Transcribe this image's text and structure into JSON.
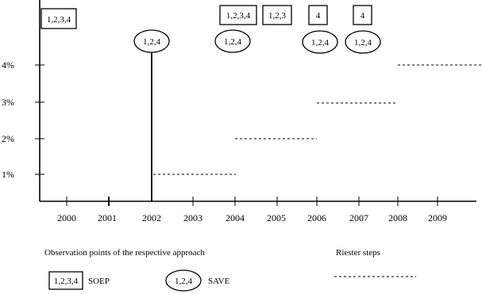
{
  "y_axis_labels": [
    "4%",
    "3%",
    "2%",
    "1%"
  ],
  "x_axis_labels": [
    "2000",
    "2001",
    "2002",
    "2003",
    "2004",
    "2005",
    "2006",
    "2007",
    "2008",
    "2009"
  ],
  "soep_boxes": [
    "1,2,3,4",
    "1,2,3,4",
    "1,2,3",
    "4",
    "4"
  ],
  "save_ovals": [
    "1,2,4",
    "1,2,4",
    "1,2,4",
    "1,2,4"
  ],
  "riester_steps": [
    {
      "from": "2002",
      "to": "2004",
      "level": "1%"
    },
    {
      "from": "2004",
      "to": "2006",
      "level": "2%"
    },
    {
      "from": "2006",
      "to": "2008",
      "level": "3%"
    },
    {
      "from": "2008",
      "to": "2010",
      "level": "4%"
    }
  ],
  "legend": {
    "observation_title": "Observation points of the respective approach",
    "riester_title": "Riester steps",
    "soep_box": "1,2,3,4",
    "soep_label": "SOEP",
    "save_oval": "1,2,4",
    "save_label": "SAVE"
  }
}
